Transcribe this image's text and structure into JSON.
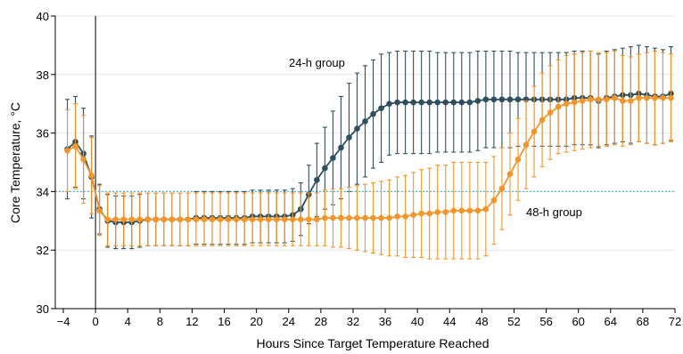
{
  "chart_data": {
    "type": "line",
    "xlabel": "Hours Since Target Temperature Reached",
    "ylabel": "Core Temperature, °C",
    "xlim": [
      -5,
      72
    ],
    "ylim": [
      30,
      40
    ],
    "xticks": [
      -4,
      0,
      4,
      8,
      12,
      16,
      20,
      24,
      28,
      32,
      36,
      40,
      44,
      48,
      52,
      56,
      60,
      64,
      68,
      72
    ],
    "yticks": [
      30,
      32,
      34,
      36,
      38,
      40
    ],
    "reference_line": {
      "y": 34,
      "color": "#5bb8cf"
    },
    "zero_line_x": 0,
    "annotations": [
      {
        "text": "24-h group",
        "series": "24-h group"
      },
      {
        "text": "48-h group",
        "series": "48-h group"
      }
    ],
    "series": [
      {
        "name": "24-h group",
        "color": "#2f4f5f",
        "points": [
          [
            -3.5,
            35.45,
            1.7
          ],
          [
            -2.5,
            35.7,
            1.55
          ],
          [
            -1.5,
            35.3,
            1.55
          ],
          [
            -0.5,
            34.5,
            1.4
          ],
          [
            0.5,
            33.4,
            0.85
          ],
          [
            1.5,
            33.0,
            0.9
          ],
          [
            2.5,
            32.95,
            0.9
          ],
          [
            3.5,
            32.95,
            0.9
          ],
          [
            4.5,
            32.95,
            0.9
          ],
          [
            5.5,
            33.0,
            0.9
          ],
          [
            6.5,
            33.05,
            0.9
          ],
          [
            7.5,
            33.05,
            0.9
          ],
          [
            8.5,
            33.05,
            0.9
          ],
          [
            9.5,
            33.05,
            0.9
          ],
          [
            10.5,
            33.05,
            0.9
          ],
          [
            11.5,
            33.05,
            0.9
          ],
          [
            12.5,
            33.1,
            0.9
          ],
          [
            13.5,
            33.1,
            0.9
          ],
          [
            14.5,
            33.1,
            0.9
          ],
          [
            15.5,
            33.1,
            0.9
          ],
          [
            16.5,
            33.1,
            0.9
          ],
          [
            17.5,
            33.1,
            0.9
          ],
          [
            18.5,
            33.1,
            0.9
          ],
          [
            19.5,
            33.15,
            0.9
          ],
          [
            20.5,
            33.15,
            0.9
          ],
          [
            21.5,
            33.15,
            0.9
          ],
          [
            22.5,
            33.15,
            0.9
          ],
          [
            23.5,
            33.15,
            0.9
          ],
          [
            24.5,
            33.2,
            0.9
          ],
          [
            25.5,
            33.4,
            0.9
          ],
          [
            26.5,
            33.9,
            1.0
          ],
          [
            27.5,
            34.4,
            1.25
          ],
          [
            28.5,
            34.8,
            1.4
          ],
          [
            29.5,
            35.15,
            1.6
          ],
          [
            30.5,
            35.5,
            1.75
          ],
          [
            31.5,
            35.85,
            1.85
          ],
          [
            32.5,
            36.15,
            1.9
          ],
          [
            33.5,
            36.4,
            1.9
          ],
          [
            34.5,
            36.65,
            1.85
          ],
          [
            35.5,
            36.85,
            1.85
          ],
          [
            36.5,
            37.0,
            1.75
          ],
          [
            37.5,
            37.05,
            1.75
          ],
          [
            38.5,
            37.05,
            1.75
          ],
          [
            39.5,
            37.05,
            1.75
          ],
          [
            40.5,
            37.05,
            1.75
          ],
          [
            41.5,
            37.05,
            1.75
          ],
          [
            42.5,
            37.05,
            1.7
          ],
          [
            43.5,
            37.05,
            1.7
          ],
          [
            44.5,
            37.05,
            1.7
          ],
          [
            45.5,
            37.05,
            1.7
          ],
          [
            46.5,
            37.05,
            1.7
          ],
          [
            47.5,
            37.1,
            1.7
          ],
          [
            48.5,
            37.15,
            1.65
          ],
          [
            49.5,
            37.15,
            1.65
          ],
          [
            50.5,
            37.15,
            1.65
          ],
          [
            51.5,
            37.15,
            1.65
          ],
          [
            52.5,
            37.15,
            1.6
          ],
          [
            53.5,
            37.15,
            1.6
          ],
          [
            54.5,
            37.15,
            1.6
          ],
          [
            55.5,
            37.15,
            1.6
          ],
          [
            56.5,
            37.15,
            1.6
          ],
          [
            57.5,
            37.15,
            1.6
          ],
          [
            58.5,
            37.15,
            1.6
          ],
          [
            59.5,
            37.2,
            1.6
          ],
          [
            60.5,
            37.2,
            1.6
          ],
          [
            61.5,
            37.2,
            1.6
          ],
          [
            62.5,
            37.1,
            1.6
          ],
          [
            63.5,
            37.2,
            1.6
          ],
          [
            64.5,
            37.25,
            1.6
          ],
          [
            65.5,
            37.3,
            1.6
          ],
          [
            66.5,
            37.3,
            1.65
          ],
          [
            67.5,
            37.35,
            1.65
          ],
          [
            68.5,
            37.3,
            1.65
          ],
          [
            69.5,
            37.25,
            1.65
          ],
          [
            70.5,
            37.25,
            1.6
          ],
          [
            71.5,
            37.35,
            1.6
          ]
        ]
      },
      {
        "name": "48-h group",
        "color": "#f0962a",
        "points": [
          [
            -3.5,
            35.4,
            1.4
          ],
          [
            -2.5,
            35.55,
            1.45
          ],
          [
            -1.5,
            35.1,
            1.5
          ],
          [
            -0.5,
            34.55,
            1.3
          ],
          [
            0.5,
            33.35,
            0.85
          ],
          [
            1.5,
            33.05,
            0.9
          ],
          [
            2.5,
            33.05,
            0.9
          ],
          [
            3.5,
            33.05,
            0.9
          ],
          [
            4.5,
            33.05,
            0.9
          ],
          [
            5.5,
            33.05,
            0.9
          ],
          [
            6.5,
            33.05,
            0.9
          ],
          [
            7.5,
            33.05,
            0.9
          ],
          [
            8.5,
            33.05,
            0.9
          ],
          [
            9.5,
            33.05,
            0.9
          ],
          [
            10.5,
            33.05,
            0.9
          ],
          [
            11.5,
            33.05,
            0.9
          ],
          [
            12.5,
            33.05,
            0.9
          ],
          [
            13.5,
            33.05,
            0.9
          ],
          [
            14.5,
            33.05,
            0.9
          ],
          [
            15.5,
            33.05,
            0.9
          ],
          [
            16.5,
            33.05,
            0.9
          ],
          [
            17.5,
            33.05,
            0.9
          ],
          [
            18.5,
            33.05,
            0.9
          ],
          [
            19.5,
            33.05,
            0.9
          ],
          [
            20.5,
            33.05,
            0.9
          ],
          [
            21.5,
            33.05,
            0.9
          ],
          [
            22.5,
            33.05,
            0.9
          ],
          [
            23.5,
            33.05,
            0.9
          ],
          [
            24.5,
            33.05,
            0.9
          ],
          [
            25.5,
            33.05,
            0.9
          ],
          [
            26.5,
            33.05,
            0.9
          ],
          [
            27.5,
            33.05,
            0.9
          ],
          [
            28.5,
            33.1,
            0.95
          ],
          [
            29.5,
            33.1,
            1.0
          ],
          [
            30.5,
            33.1,
            1.0
          ],
          [
            31.5,
            33.1,
            1.05
          ],
          [
            32.5,
            33.1,
            1.1
          ],
          [
            33.5,
            33.1,
            1.15
          ],
          [
            34.5,
            33.1,
            1.2
          ],
          [
            35.5,
            33.1,
            1.25
          ],
          [
            36.5,
            33.1,
            1.3
          ],
          [
            37.5,
            33.15,
            1.35
          ],
          [
            38.5,
            33.15,
            1.4
          ],
          [
            39.5,
            33.2,
            1.45
          ],
          [
            40.5,
            33.25,
            1.5
          ],
          [
            41.5,
            33.25,
            1.55
          ],
          [
            42.5,
            33.3,
            1.6
          ],
          [
            43.5,
            33.3,
            1.6
          ],
          [
            44.5,
            33.35,
            1.65
          ],
          [
            45.5,
            33.35,
            1.65
          ],
          [
            46.5,
            33.35,
            1.65
          ],
          [
            47.5,
            33.35,
            1.65
          ],
          [
            48.5,
            33.4,
            1.6
          ],
          [
            49.5,
            33.7,
            1.5
          ],
          [
            50.5,
            34.1,
            1.4
          ],
          [
            51.5,
            34.6,
            1.4
          ],
          [
            52.5,
            35.1,
            1.4
          ],
          [
            53.5,
            35.6,
            1.5
          ],
          [
            54.5,
            36.05,
            1.55
          ],
          [
            55.5,
            36.45,
            1.6
          ],
          [
            56.5,
            36.7,
            1.6
          ],
          [
            57.5,
            36.9,
            1.6
          ],
          [
            58.5,
            37.0,
            1.65
          ],
          [
            59.5,
            37.05,
            1.65
          ],
          [
            60.5,
            37.1,
            1.65
          ],
          [
            61.5,
            37.15,
            1.65
          ],
          [
            62.5,
            37.15,
            1.6
          ],
          [
            63.5,
            37.15,
            1.6
          ],
          [
            64.5,
            37.2,
            1.6
          ],
          [
            65.5,
            37.1,
            1.55
          ],
          [
            66.5,
            37.1,
            1.5
          ],
          [
            67.5,
            37.2,
            1.5
          ],
          [
            68.5,
            37.2,
            1.55
          ],
          [
            69.5,
            37.2,
            1.6
          ],
          [
            70.5,
            37.2,
            1.55
          ],
          [
            71.5,
            37.2,
            1.5
          ]
        ]
      }
    ]
  }
}
